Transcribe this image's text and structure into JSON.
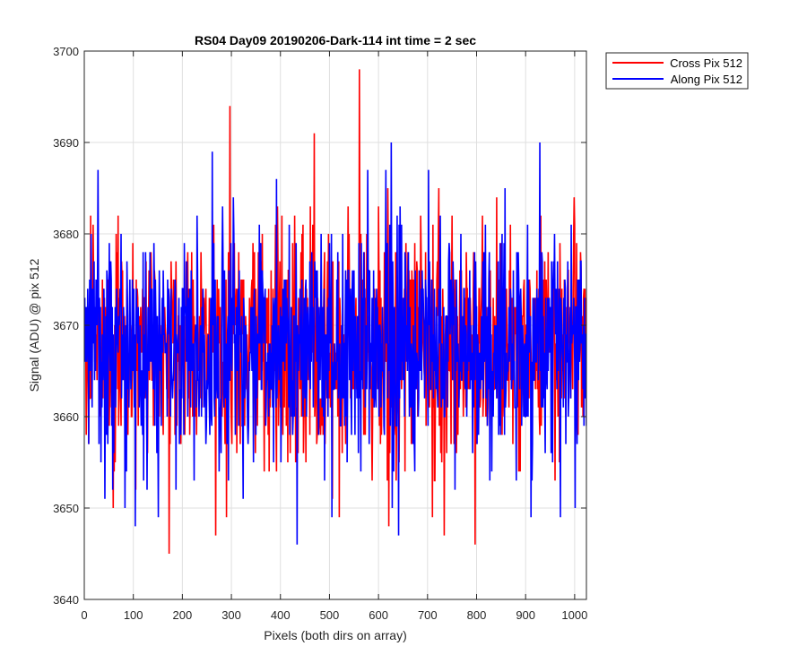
{
  "chart_data": {
    "type": "line",
    "title": "RS04 Day09 20190206-Dark-114 int time = 2 sec",
    "xlabel": "Pixels (both dirs on array)",
    "ylabel": "Signal (ADU) @ pix 512",
    "xlim": [
      0,
      1024
    ],
    "ylim": [
      3640,
      3700
    ],
    "xticks": [
      0,
      100,
      200,
      300,
      400,
      500,
      600,
      700,
      800,
      900,
      1000
    ],
    "yticks": [
      3640,
      3650,
      3660,
      3670,
      3680,
      3690,
      3700
    ],
    "grid": true,
    "legend_position": "outside-top-right",
    "noise_model": {
      "points_per_series": 1024,
      "mean": 3667.5,
      "std": 6.5
    },
    "series": [
      {
        "name": "Cross Pix 512",
        "color": "#ff0000",
        "seed": 17,
        "notable_points": [
          {
            "x": 296,
            "y": 3694
          },
          {
            "x": 468,
            "y": 3691
          },
          {
            "x": 560,
            "y": 3698
          },
          {
            "x": 172,
            "y": 3645
          },
          {
            "x": 267,
            "y": 3647
          },
          {
            "x": 733,
            "y": 3647
          },
          {
            "x": 796,
            "y": 3646
          },
          {
            "x": 620,
            "y": 3648
          },
          {
            "x": 58,
            "y": 3650
          }
        ]
      },
      {
        "name": "Along Pix 512",
        "color": "#0000ff",
        "seed": 91,
        "notable_points": [
          {
            "x": 625,
            "y": 3690
          },
          {
            "x": 928,
            "y": 3690
          },
          {
            "x": 260,
            "y": 3689
          },
          {
            "x": 27,
            "y": 3687
          },
          {
            "x": 433,
            "y": 3646
          },
          {
            "x": 103,
            "y": 3648
          },
          {
            "x": 640,
            "y": 3647
          },
          {
            "x": 910,
            "y": 3649
          },
          {
            "x": 150,
            "y": 3649
          }
        ]
      }
    ]
  }
}
